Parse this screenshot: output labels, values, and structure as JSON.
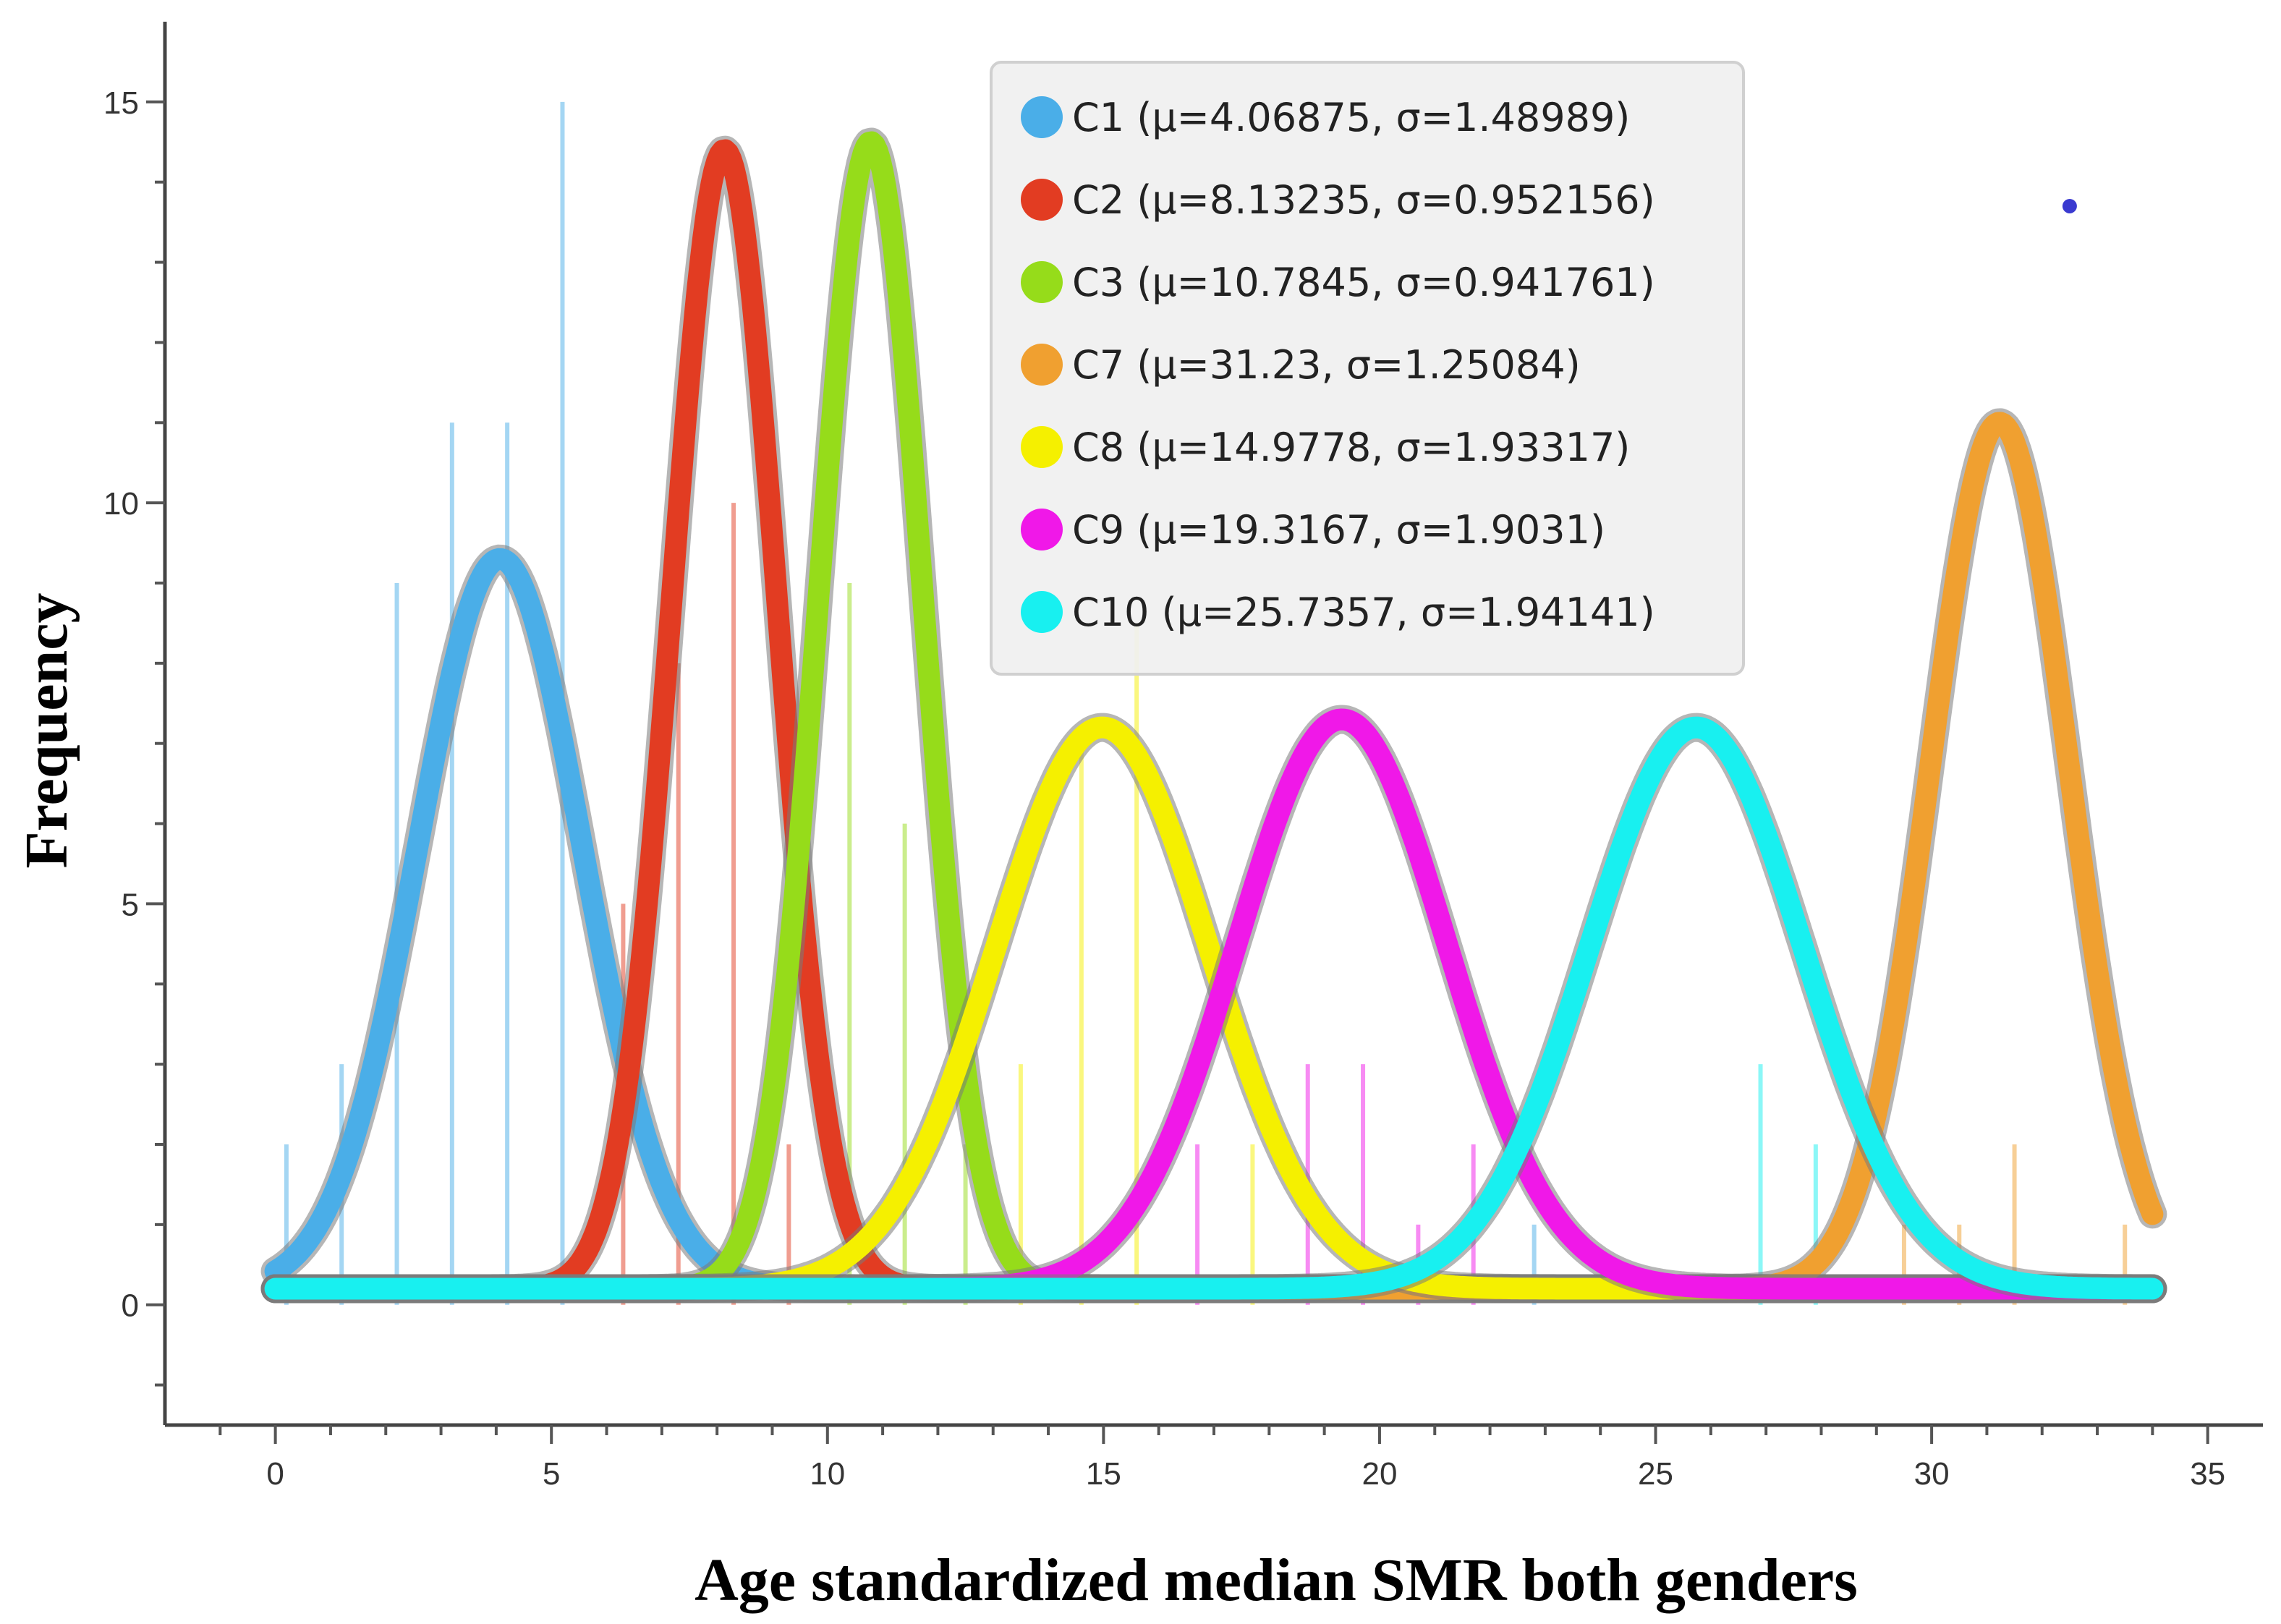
{
  "chart_data": {
    "type": "line",
    "title": "",
    "xlabel": "Age standardized median SMR both genders",
    "ylabel": "Frequency",
    "xlim": [
      -2,
      36
    ],
    "ylim": [
      -1.5,
      16
    ],
    "curve_x_range": [
      0,
      34
    ],
    "xticks": [
      0,
      5,
      10,
      15,
      20,
      25,
      30,
      35
    ],
    "yticks": [
      0,
      5,
      10,
      15
    ],
    "legend_position": "top-center",
    "grid": false,
    "series": [
      {
        "name": "C1",
        "label": "C1 (μ=4.06875, σ=1.48989)",
        "mu": 4.06875,
        "sigma": 1.48989,
        "peak": 9.3,
        "color": "#4aaee8"
      },
      {
        "name": "C2",
        "label": "C2 (μ=8.13235, σ=0.952156)",
        "mu": 8.13235,
        "sigma": 0.952156,
        "peak": 14.4,
        "color": "#e23c22"
      },
      {
        "name": "C3",
        "label": "C3 (μ=10.7845, σ=0.941761)",
        "mu": 10.7845,
        "sigma": 0.941761,
        "peak": 14.5,
        "color": "#96dc1a"
      },
      {
        "name": "C7",
        "label": "C7 (μ=31.23, σ=1.25084)",
        "mu": 31.23,
        "sigma": 1.25084,
        "peak": 11.0,
        "color": "#f0a030"
      },
      {
        "name": "C8",
        "label": "C8 (μ=14.9778, σ=1.93317)",
        "mu": 14.9778,
        "sigma": 1.93317,
        "peak": 7.2,
        "color": "#f5f000"
      },
      {
        "name": "C9",
        "label": "C9 (μ=19.3167, σ=1.9031)",
        "mu": 19.3167,
        "sigma": 1.9031,
        "peak": 7.3,
        "color": "#f018e8"
      },
      {
        "name": "C10",
        "label": "C10 (μ=25.7357, σ=1.94141)",
        "mu": 25.7357,
        "sigma": 1.94141,
        "peak": 7.2,
        "color": "#18f0f0"
      }
    ],
    "histogram_bars": [
      {
        "x": 0.2,
        "h": 2,
        "color": "#4aaee8"
      },
      {
        "x": 1.2,
        "h": 3,
        "color": "#4aaee8"
      },
      {
        "x": 2.2,
        "h": 9,
        "color": "#4aaee8"
      },
      {
        "x": 3.2,
        "h": 11,
        "color": "#4aaee8"
      },
      {
        "x": 4.2,
        "h": 11,
        "color": "#4aaee8"
      },
      {
        "x": 5.2,
        "h": 15,
        "color": "#4aaee8"
      },
      {
        "x": 6.3,
        "h": 5,
        "color": "#e23c22"
      },
      {
        "x": 7.3,
        "h": 8,
        "color": "#e23c22"
      },
      {
        "x": 8.3,
        "h": 10,
        "color": "#e23c22"
      },
      {
        "x": 9.3,
        "h": 2,
        "color": "#e23c22"
      },
      {
        "x": 10.4,
        "h": 9,
        "color": "#96dc1a"
      },
      {
        "x": 11.4,
        "h": 6,
        "color": "#96dc1a"
      },
      {
        "x": 12.5,
        "h": 2,
        "color": "#96dc1a"
      },
      {
        "x": 13.5,
        "h": 3,
        "color": "#f5f000"
      },
      {
        "x": 14.6,
        "h": 7,
        "color": "#f5f000"
      },
      {
        "x": 15.6,
        "h": 8.5,
        "color": "#f5f000"
      },
      {
        "x": 16.7,
        "h": 2,
        "color": "#f018e8"
      },
      {
        "x": 17.7,
        "h": 2,
        "color": "#f5f000"
      },
      {
        "x": 18.7,
        "h": 3,
        "color": "#f018e8"
      },
      {
        "x": 19.7,
        "h": 3,
        "color": "#f018e8"
      },
      {
        "x": 20.7,
        "h": 1,
        "color": "#f018e8"
      },
      {
        "x": 21.7,
        "h": 2,
        "color": "#f018e8"
      },
      {
        "x": 22.8,
        "h": 1,
        "color": "#4aaee8"
      },
      {
        "x": 26.9,
        "h": 3,
        "color": "#18f0f0"
      },
      {
        "x": 27.9,
        "h": 2,
        "color": "#18f0f0"
      },
      {
        "x": 29.5,
        "h": 1,
        "color": "#f0a030"
      },
      {
        "x": 30.5,
        "h": 1,
        "color": "#f0a030"
      },
      {
        "x": 31.5,
        "h": 2,
        "color": "#f0a030"
      },
      {
        "x": 33.5,
        "h": 1,
        "color": "#f0a030"
      }
    ],
    "marker_point": {
      "x": 32.5,
      "y": 13.7,
      "color": "#3a3ad0"
    }
  }
}
